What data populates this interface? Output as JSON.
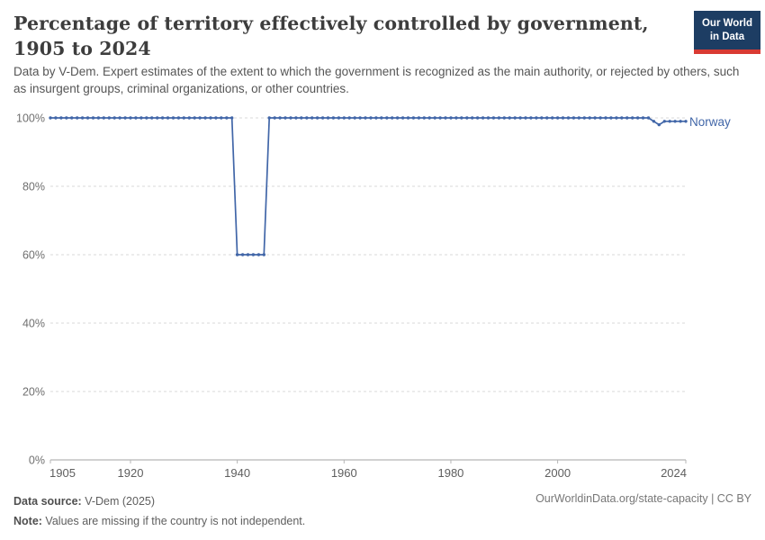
{
  "header": {
    "title": "Percentage of territory effectively controlled by government, 1905 to 2024",
    "subtitle": "Data by V-Dem. Expert estimates of the extent to which the government is recognized as the main authority, or rejected by others, such as insurgent groups, criminal organizations, or other countries.",
    "logo": {
      "line1": "Our World",
      "line2": "in Data",
      "bg_color": "#1d3d63",
      "bar_color": "#d93a33"
    }
  },
  "chart_data": {
    "type": "line",
    "title": "Percentage of territory effectively controlled by government, 1905 to 2024",
    "xlabel": "",
    "ylabel": "",
    "xlim": [
      1905,
      2024
    ],
    "ylim": [
      0,
      100
    ],
    "x_ticks": [
      1905,
      1920,
      1940,
      1960,
      1980,
      2000,
      2024
    ],
    "y_ticks": [
      0,
      20,
      40,
      60,
      80,
      100
    ],
    "y_tick_suffix": "%",
    "grid": "horizontal-dashed",
    "legend_position": "end-of-line-label",
    "series": [
      {
        "name": "Norway",
        "color": "#4166a8",
        "runs": [
          {
            "from": 1905,
            "to": 1939,
            "value": 100
          },
          {
            "from": 1940,
            "to": 1945,
            "value": 60
          },
          {
            "from": 1946,
            "to": 2017,
            "value": 100
          },
          {
            "from": 2018,
            "to": 2018,
            "value": 99
          },
          {
            "from": 2019,
            "to": 2019,
            "value": 98
          },
          {
            "from": 2020,
            "to": 2024,
            "value": 99
          }
        ]
      }
    ]
  },
  "footer": {
    "source_label": "Data source:",
    "source_value": " V-Dem (2025)",
    "note_label": "Note:",
    "note_value": " Values are missing if the country is not independent.",
    "right_text": "OurWorldinData.org/state-capacity | CC BY"
  }
}
